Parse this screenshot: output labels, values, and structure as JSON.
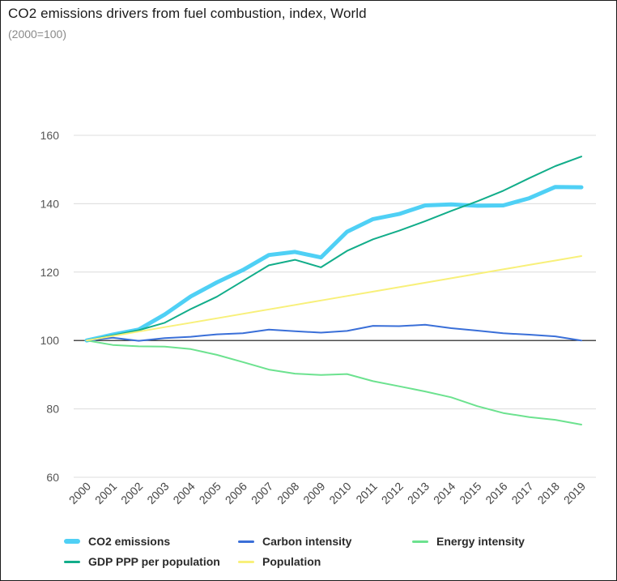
{
  "header": {
    "title": "CO2 emissions drivers from fuel combustion, index, World",
    "subtitle": "(2000=100)"
  },
  "chart_data": {
    "type": "line",
    "title": "CO2 emissions drivers from fuel combustion, index, World",
    "subtitle": "(2000=100)",
    "xlabel": "",
    "ylabel": "",
    "x": [
      "2000",
      "2001",
      "2002",
      "2003",
      "2004",
      "2005",
      "2006",
      "2007",
      "2008",
      "2009",
      "2010",
      "2011",
      "2012",
      "2013",
      "2014",
      "2015",
      "2016",
      "2017",
      "2018",
      "2019"
    ],
    "ylim": [
      60,
      160
    ],
    "yticks": [
      "60",
      "80",
      "100",
      "120",
      "140",
      "160"
    ],
    "grid": "horizontal",
    "reference_line": 100,
    "legend_position": "bottom",
    "series": [
      {
        "name": "CO2 emissions",
        "color": "#4fd0f5",
        "width": "thick",
        "values": [
          100,
          101.7,
          103.2,
          107.6,
          112.9,
          117.0,
          120.6,
          125.0,
          125.9,
          124.3,
          131.8,
          135.5,
          137.0,
          139.5,
          139.8,
          139.4,
          139.5,
          141.6,
          144.9,
          144.8
        ]
      },
      {
        "name": "Carbon intensity",
        "color": "#3a6fd8",
        "width": "thin",
        "values": [
          100,
          100.8,
          99.9,
          100.7,
          101.1,
          101.8,
          102.1,
          103.2,
          102.7,
          102.3,
          102.8,
          104.3,
          104.2,
          104.6,
          103.6,
          102.9,
          102.1,
          101.7,
          101.2,
          100.0
        ]
      },
      {
        "name": "Energy intensity",
        "color": "#6ce28f",
        "width": "thin",
        "values": [
          100,
          98.7,
          98.3,
          98.2,
          97.5,
          95.8,
          93.7,
          91.5,
          90.3,
          89.9,
          90.2,
          88.1,
          86.6,
          85.1,
          83.4,
          80.8,
          78.8,
          77.6,
          76.8,
          75.4
        ]
      },
      {
        "name": "GDP PPP per population",
        "color": "#12ad8a",
        "width": "thin",
        "values": [
          100,
          101.5,
          103.0,
          105.2,
          109.2,
          112.8,
          117.4,
          122.0,
          123.6,
          121.4,
          126.2,
          129.6,
          132.1,
          134.9,
          137.9,
          140.7,
          143.8,
          147.5,
          151.0,
          153.8
        ]
      },
      {
        "name": "Population",
        "color": "#f8f07a",
        "width": "thin",
        "values": [
          100,
          101.3,
          102.6,
          103.9,
          105.2,
          106.5,
          107.8,
          109.1,
          110.4,
          111.7,
          113.0,
          114.3,
          115.6,
          116.9,
          118.2,
          119.5,
          120.8,
          122.1,
          123.4,
          124.7
        ]
      }
    ]
  },
  "legend": {
    "items": [
      {
        "label": "CO2 emissions",
        "color": "#4fd0f5"
      },
      {
        "label": "Carbon intensity",
        "color": "#3a6fd8"
      },
      {
        "label": "Energy intensity",
        "color": "#6ce28f"
      },
      {
        "label": "GDP PPP per population",
        "color": "#12ad8a"
      },
      {
        "label": "Population",
        "color": "#f8f07a"
      }
    ]
  }
}
